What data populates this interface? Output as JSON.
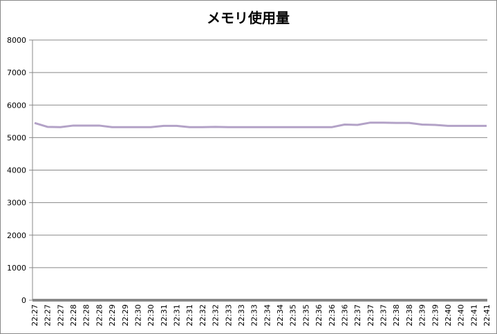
{
  "chart_data": {
    "type": "line",
    "title": "メモリ使用量",
    "categories": [
      "22:27",
      "22:27",
      "22:27",
      "22:28",
      "22:28",
      "22:28",
      "22:29",
      "22:29",
      "22:30",
      "22:30",
      "22:31",
      "22:31",
      "22:31",
      "22:32",
      "22:32",
      "22:33",
      "22:33",
      "22:33",
      "22:34",
      "22:34",
      "22:35",
      "22:35",
      "22:36",
      "22:36",
      "22:36",
      "22:37",
      "22:37",
      "22:37",
      "22:38",
      "22:38",
      "22:39",
      "22:39",
      "22:40",
      "22:40",
      "22:41",
      "22:41"
    ],
    "series": [
      {
        "color": "#b3a2c7",
        "values": [
          5450,
          5330,
          5320,
          5370,
          5370,
          5370,
          5320,
          5320,
          5320,
          5320,
          5360,
          5360,
          5320,
          5320,
          5330,
          5320,
          5320,
          5320,
          5320,
          5320,
          5320,
          5320,
          5320,
          5320,
          5400,
          5390,
          5460,
          5460,
          5450,
          5450,
          5400,
          5390,
          5360,
          5360,
          5360,
          5360
        ]
      }
    ],
    "ylim": [
      0,
      8000
    ],
    "yticks": [
      0,
      1000,
      2000,
      3000,
      4000,
      5000,
      6000,
      7000,
      8000
    ],
    "grid": true
  }
}
